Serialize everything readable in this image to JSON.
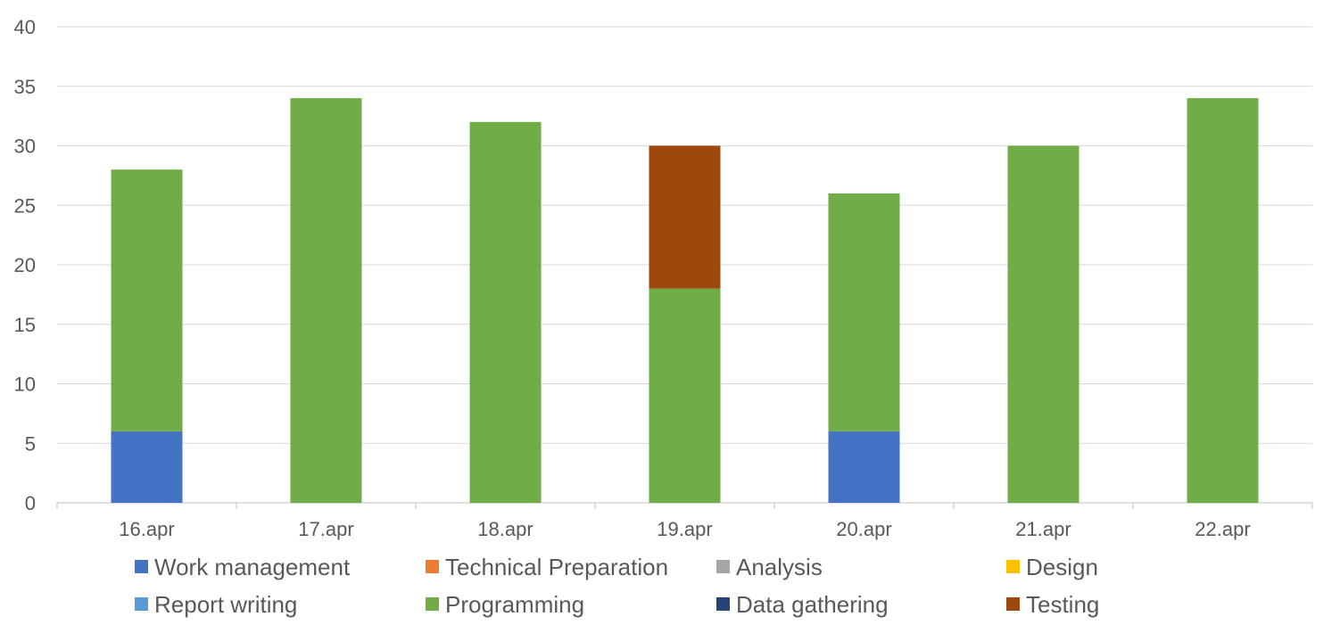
{
  "chart_data": {
    "type": "bar",
    "stacked": true,
    "title": "",
    "xlabel": "",
    "ylabel": "",
    "categories": [
      "16.apr",
      "17.apr",
      "18.apr",
      "19.apr",
      "20.apr",
      "21.apr",
      "22.apr"
    ],
    "ylim": [
      0,
      40
    ],
    "yticks": [
      0,
      5,
      10,
      15,
      20,
      25,
      30,
      35,
      40
    ],
    "grid": true,
    "legend_position": "bottom",
    "series": [
      {
        "name": "Work management",
        "color": "#4472C4",
        "values": [
          6,
          0,
          0,
          0,
          6,
          0,
          0
        ]
      },
      {
        "name": "Technical Preparation",
        "color": "#ED7D31",
        "values": [
          0,
          0,
          0,
          0,
          0,
          0,
          0
        ]
      },
      {
        "name": "Analysis",
        "color": "#A5A5A5",
        "values": [
          0,
          0,
          0,
          0,
          0,
          0,
          0
        ]
      },
      {
        "name": "Design",
        "color": "#FFC000",
        "values": [
          0,
          0,
          0,
          0,
          0,
          0,
          0
        ]
      },
      {
        "name": "Report writing",
        "color": "#5B9BD5",
        "values": [
          0,
          0,
          0,
          0,
          0,
          0,
          0
        ]
      },
      {
        "name": "Programming",
        "color": "#70AD47",
        "values": [
          22,
          34,
          32,
          18,
          20,
          30,
          34
        ]
      },
      {
        "name": "Data gathering",
        "color": "#264478",
        "values": [
          0,
          0,
          0,
          0,
          0,
          0,
          0
        ]
      },
      {
        "name": "Testing",
        "color": "#9E480E",
        "values": [
          0,
          0,
          0,
          12,
          0,
          0,
          0
        ]
      }
    ]
  }
}
